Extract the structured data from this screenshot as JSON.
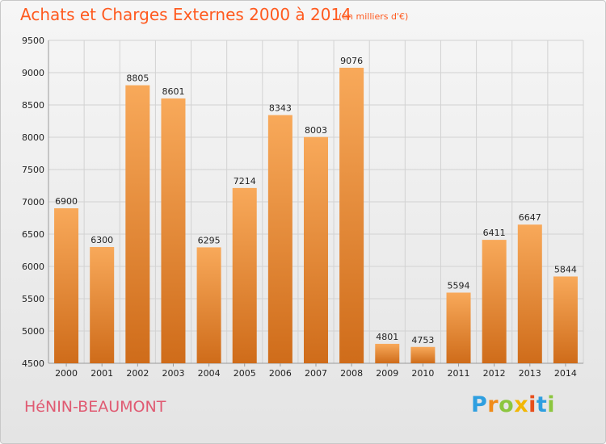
{
  "header": {
    "title": "Achats et Charges Externes 2000 à 2014",
    "subtitle": "(en milliers d'€)"
  },
  "footer": {
    "city": "HéNIN-BEAUMONT",
    "logo": [
      "P",
      "r",
      "o",
      "x",
      "i",
      "t",
      "i"
    ]
  },
  "chart_data": {
    "type": "bar",
    "title": "Achats et Charges Externes 2000 à 2014",
    "subtitle": "(en milliers d'€)",
    "xlabel": "",
    "ylabel": "",
    "categories": [
      "2000",
      "2001",
      "2002",
      "2003",
      "2004",
      "2005",
      "2006",
      "2007",
      "2008",
      "2009",
      "2010",
      "2011",
      "2012",
      "2013",
      "2014"
    ],
    "values": [
      6900,
      6300,
      8805,
      8601,
      6295,
      7214,
      8343,
      8003,
      9076,
      4801,
      4753,
      5594,
      6411,
      6647,
      5844
    ],
    "ylim": [
      4500,
      9500
    ],
    "yticks": [
      4500,
      5000,
      5500,
      6000,
      6500,
      7000,
      7500,
      8000,
      8500,
      9000,
      9500
    ],
    "grid": true,
    "colors": {
      "bar_light": "#f6a24f",
      "bar_dark": "#cf6c1a",
      "grid": "#d2d2d2"
    }
  }
}
